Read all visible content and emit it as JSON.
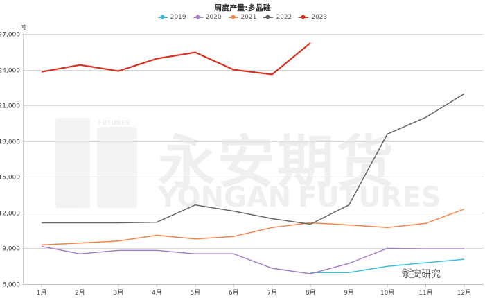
{
  "chart_data": {
    "type": "line",
    "title": "周度产量:多晶硅",
    "xlabel": "",
    "ylabel": "吨",
    "categories": [
      "1月",
      "2月",
      "3月",
      "4月",
      "5月",
      "6月",
      "7月",
      "8月",
      "9月",
      "10月",
      "11月",
      "12月"
    ],
    "ylim": [
      6000,
      27000
    ],
    "yticks": [
      6000,
      9000,
      12000,
      15000,
      18000,
      21000,
      24000,
      27000
    ],
    "ytick_labels": [
      "6,000",
      "9,000",
      "12,000",
      "15,000",
      "18,000",
      "21,000",
      "24,000",
      "27,000"
    ],
    "grid": true,
    "legend_position": "top",
    "series": [
      {
        "name": "2019",
        "color": "#3bbfe0",
        "values": [
          null,
          null,
          null,
          null,
          null,
          null,
          null,
          6980,
          6980,
          7500,
          7800,
          8090
        ]
      },
      {
        "name": "2020",
        "color": "#a77fc7",
        "values": [
          9170,
          8540,
          8830,
          8830,
          8540,
          8540,
          7330,
          6870,
          7740,
          9000,
          8950,
          8950
        ]
      },
      {
        "name": "2021",
        "color": "#f5844a",
        "values": [
          9290,
          9450,
          9620,
          10100,
          9800,
          10000,
          10750,
          11150,
          10970,
          10750,
          11100,
          12300
        ]
      },
      {
        "name": "2022",
        "color": "#666666",
        "values": [
          11150,
          11150,
          11150,
          11200,
          12650,
          12130,
          11500,
          11030,
          12650,
          18600,
          20000,
          21980
        ]
      },
      {
        "name": "2023",
        "color": "#d7301f",
        "values": [
          23820,
          24400,
          23880,
          24930,
          25450,
          24000,
          23600,
          26250,
          null,
          null,
          null,
          null
        ]
      }
    ]
  },
  "watermark": {
    "cn": "永安期货",
    "en_left": "YONGAN",
    "en_right": "FUTURES",
    "logo_top": "FUTURES",
    "logo_bottom": "YONGAN"
  },
  "footer_brand": "永安研究"
}
